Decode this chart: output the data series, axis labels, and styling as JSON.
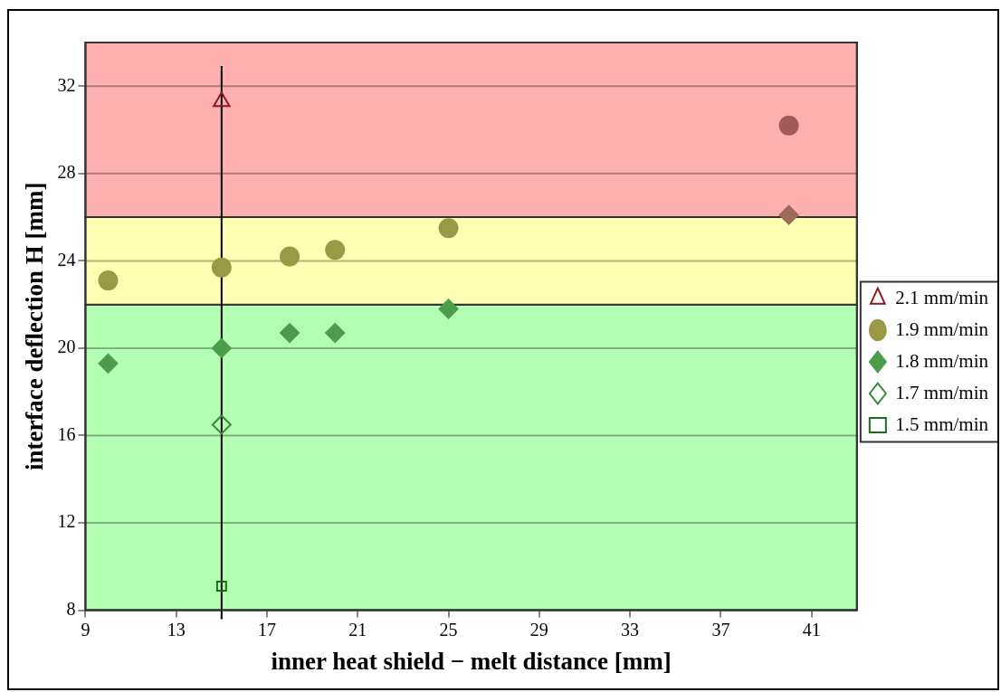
{
  "chart_data": {
    "type": "scatter",
    "xlabel": "inner heat shield − melt distance [mm]",
    "ylabel": "interface deflection H [mm]",
    "xlim": [
      9,
      43
    ],
    "xticks": [
      9,
      13,
      17,
      21,
      25,
      29,
      33,
      37,
      41
    ],
    "ylim": [
      8,
      34
    ],
    "yticks": [
      8,
      12,
      16,
      20,
      24,
      28,
      32
    ],
    "grid": "y",
    "legend": "right",
    "bands": [
      {
        "axis": "y",
        "from": 8,
        "to": 22,
        "color": "#b3ffb3"
      },
      {
        "axis": "y",
        "from": 22,
        "to": 26,
        "color": "#ffffb3"
      },
      {
        "axis": "y",
        "from": 26,
        "to": 34,
        "color": "#ffb0b0"
      }
    ],
    "ref_lines": [
      {
        "axis": "x",
        "value": 15,
        "color": "#000000"
      }
    ],
    "series": [
      {
        "name": "2.1 mm/min",
        "marker": "triangle",
        "color": "#8b1a1a",
        "x": [
          15
        ],
        "values": [
          31.3
        ]
      },
      {
        "name": "1.9 mm/min",
        "marker": "circle",
        "color": "#666666",
        "colors": [
          "#999946",
          "#999946",
          "#999946",
          "#999946",
          "#999946",
          "#a35a5a"
        ],
        "x": [
          10,
          15,
          18,
          20,
          25,
          40
        ],
        "values": [
          23.1,
          23.7,
          24.2,
          24.5,
          25.5,
          30.2
        ]
      },
      {
        "name": "1.8 mm/min",
        "marker": "diamond",
        "color": "#666666",
        "colors": [
          "#4c9c4c",
          "#4c9c4c",
          "#4c9c4c",
          "#4c9c4c",
          "#4c9c4c",
          "#a06a5a"
        ],
        "x": [
          10,
          15,
          18,
          20,
          25,
          40
        ],
        "values": [
          19.3,
          20.0,
          20.7,
          20.7,
          21.8,
          26.1
        ]
      },
      {
        "name": "1.7 mm/min",
        "marker": "diamond",
        "color": "#3a8a3a",
        "x": [
          15
        ],
        "values": [
          16.5
        ]
      },
      {
        "name": "1.5 mm/min",
        "marker": "square",
        "color": "#1a6b1a",
        "x": [
          15
        ],
        "values": [
          9.1
        ]
      }
    ]
  }
}
